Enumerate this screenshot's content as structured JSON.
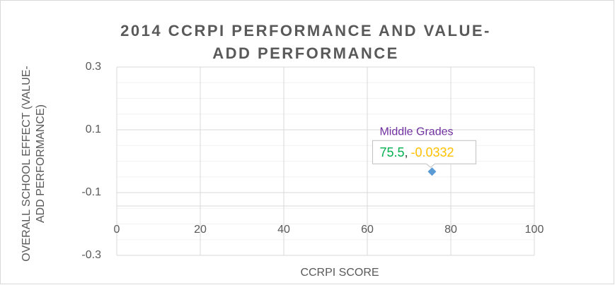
{
  "chart_data": {
    "type": "scatter",
    "title": "2014 CCRPI PERFORMANCE AND VALUE-ADD PERFORMANCE",
    "x_label": "CCRPI SCORE",
    "y_label": "OVERALL SCHOOL EFFECT (VALUE-ADD PERFORMANCE)",
    "xlim": [
      0,
      100
    ],
    "xticks": [
      0,
      20,
      40,
      60,
      80,
      100
    ],
    "ylim": [
      -0.3,
      0.3
    ],
    "yticks": [
      0.3,
      0.1,
      -0.1,
      -0.3
    ],
    "grid": true,
    "data_label_separator": ",",
    "series": [
      {
        "name": "Middle Grades",
        "color": "#5b9bd5",
        "x": [
          75.5
        ],
        "values": [
          -0.0332
        ]
      }
    ]
  }
}
